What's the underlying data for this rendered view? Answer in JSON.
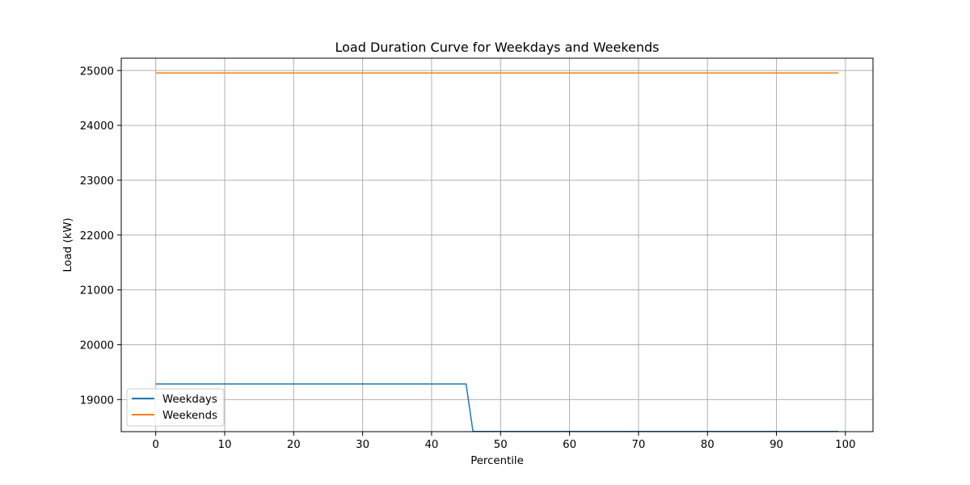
{
  "chart_data": {
    "type": "line",
    "title": "Load Duration Curve for Weekdays and Weekends",
    "xlabel": "Percentile",
    "ylabel": "Load (kW)",
    "xlim": [
      -5,
      104
    ],
    "ylim": [
      18415,
      25225
    ],
    "xticks": [
      0,
      10,
      20,
      30,
      40,
      50,
      60,
      70,
      80,
      90,
      100
    ],
    "yticks": [
      19000,
      20000,
      21000,
      22000,
      23000,
      24000,
      25000
    ],
    "grid": true,
    "legend_position": "lower-left",
    "series": [
      {
        "name": "Weekdays",
        "color": "#1f77b4",
        "x": [
          0,
          45,
          46,
          99
        ],
        "y": [
          19285,
          19285,
          18420,
          18420
        ]
      },
      {
        "name": "Weekends",
        "color": "#ff7f0e",
        "x": [
          0,
          99
        ],
        "y": [
          24955,
          24955
        ]
      }
    ]
  }
}
